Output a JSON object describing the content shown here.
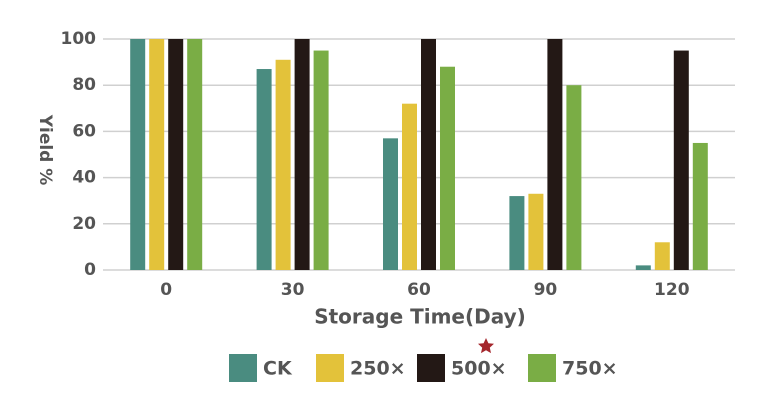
{
  "chart_data": {
    "type": "bar",
    "x_label": "Storage Time(Day)",
    "y_label": "Yield %",
    "categories": [
      "0",
      "30",
      "60",
      "90",
      "120"
    ],
    "series": [
      {
        "name": "CK",
        "color": "#4a8c80",
        "values": [
          100,
          87,
          57,
          32,
          2
        ]
      },
      {
        "name": "250×",
        "color": "#e3c23a",
        "values": [
          100,
          91,
          72,
          33,
          12
        ]
      },
      {
        "name": "500×",
        "color": "#231815",
        "values": [
          100,
          100,
          100,
          100,
          95
        ]
      },
      {
        "name": "750×",
        "color": "#7aad45",
        "values": [
          100,
          95,
          88,
          80,
          55
        ]
      }
    ],
    "ylim": [
      0,
      100
    ],
    "yticks": [
      0,
      20,
      40,
      60,
      80,
      100
    ],
    "grid": true,
    "legend": "bottom"
  }
}
